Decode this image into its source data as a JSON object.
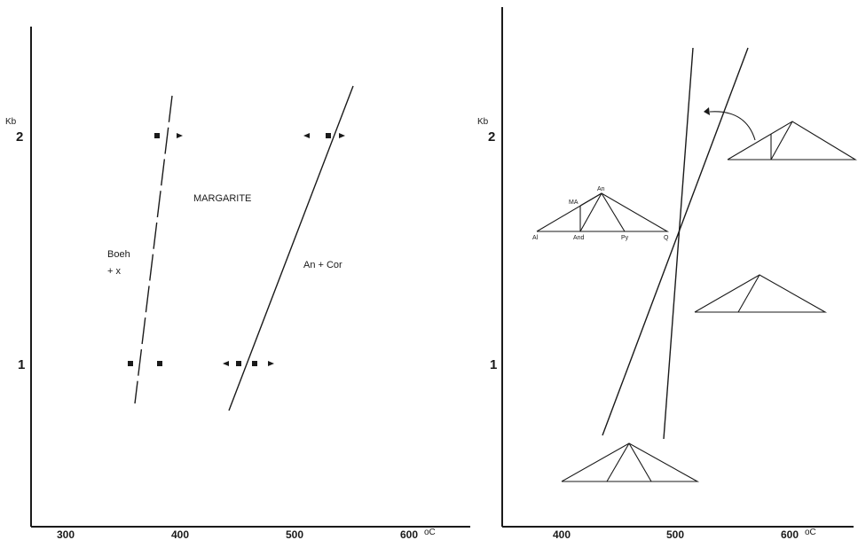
{
  "left_panel": {
    "y_unit": "Kb",
    "y_ticks": [
      "2",
      "1"
    ],
    "x_ticks": [
      "300",
      "400",
      "500",
      "600"
    ],
    "x_unit": "oC",
    "labels": {
      "margarite": "MARGARITE",
      "boeh": "Boeh",
      "boeh_x": "+ x",
      "an_cor": "An + Cor"
    }
  },
  "right_panel": {
    "y_unit": "Kb",
    "y_ticks": [
      "2",
      "1"
    ],
    "x_ticks": [
      "400",
      "500",
      "600"
    ],
    "x_unit": "oC",
    "triangle_labels": {
      "an": "An",
      "ma": "MA",
      "al": "Al",
      "and": "And",
      "py": "Py",
      "q": "Q"
    }
  }
}
